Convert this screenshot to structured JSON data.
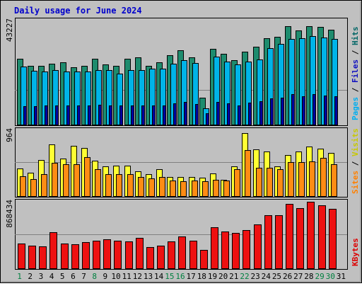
{
  "colors": {
    "background": "#C0C0C0",
    "title": "#0000CC",
    "hits": "#006666",
    "hits_bar": "#1E8C6E",
    "files": "#1010C0",
    "files_bar": "#00B4E8",
    "pages_bar": "#0000A0",
    "pages_label": "#00AEEF",
    "visits": "#C8C800",
    "visits_bar": "#FFFF33",
    "sites": "#FF8000",
    "sites_bar": "#FF8C14",
    "kbytes": "#DD0000",
    "kbytes_bar": "#EE1111",
    "day_green": "#008040",
    "day_black": "#000000"
  },
  "chart_data": {
    "type": "bar",
    "title": "Daily usage for June 2024",
    "categories": [
      "1",
      "2",
      "3",
      "4",
      "5",
      "6",
      "7",
      "8",
      "9",
      "10",
      "11",
      "12",
      "13",
      "14",
      "15",
      "16",
      "17",
      "18",
      "19",
      "20",
      "21",
      "22",
      "23",
      "24",
      "25",
      "26",
      "27",
      "28",
      "29",
      "30",
      "31"
    ],
    "weekend_days": [
      "1",
      "8",
      "15",
      "16",
      "22",
      "29",
      "30"
    ],
    "panels": [
      {
        "name": "hits-files-pages",
        "max_label": "43227",
        "ylim": [
          0,
          43227
        ],
        "legend": [
          {
            "key": "pages",
            "text": "Pages"
          },
          {
            "key": "sep1",
            "text": " / "
          },
          {
            "key": "files",
            "text": "Files"
          },
          {
            "key": "sep2",
            "text": " / "
          },
          {
            "key": "hits",
            "text": "Hits"
          }
        ],
        "series": [
          {
            "name": "Hits",
            "values": [
              27500,
              24500,
              24500,
              25500,
              26000,
              24000,
              24500,
              27500,
              25000,
              24500,
              27500,
              28000,
              24500,
              26000,
              29000,
              31000,
              28000,
              11500,
              31500,
              29500,
              27000,
              30500,
              32500,
              36000,
              36500,
              41000,
              39000,
              41000,
              40500,
              39500,
              null
            ]
          },
          {
            "name": "Files",
            "values": [
              24200,
              22600,
              22300,
              22900,
              22300,
              22300,
              22300,
              22900,
              22900,
              21300,
              22900,
              22900,
              23500,
              23500,
              25400,
              27000,
              25700,
              6900,
              28300,
              26400,
              25100,
              26400,
              27300,
              31700,
              33600,
              35500,
              35900,
              36800,
              36200,
              35500,
              null
            ]
          },
          {
            "name": "Pages",
            "values": [
              8000,
              8000,
              8300,
              8300,
              8300,
              8200,
              8300,
              8600,
              8300,
              8200,
              8300,
              8300,
              8300,
              8300,
              9000,
              9600,
              8900,
              5000,
              9600,
              9100,
              8300,
              9300,
              9900,
              11200,
              11500,
              12800,
              12000,
              12800,
              12400,
              12100,
              null
            ]
          }
        ]
      },
      {
        "name": "visits-sites",
        "max_label": "964",
        "ylim": [
          0,
          964
        ],
        "legend": [
          {
            "key": "sites",
            "text": "Sites"
          },
          {
            "key": "sep",
            "text": " / "
          },
          {
            "key": "visits",
            "text": "Visits"
          }
        ],
        "series": [
          {
            "name": "Visits",
            "values": [
              410,
              350,
              540,
              770,
              560,
              750,
              720,
              530,
              450,
              460,
              460,
              370,
              330,
              400,
              290,
              290,
              290,
              280,
              340,
              250,
              450,
              930,
              690,
              660,
              450,
              610,
              660,
              740,
              700,
              640,
              null
            ]
          },
          {
            "name": "Sites",
            "values": [
              300,
              260,
              330,
              500,
              480,
              480,
              580,
              400,
              330,
              330,
              330,
              290,
              270,
              290,
              240,
              230,
              240,
              230,
              250,
              240,
              400,
              680,
              420,
              420,
              400,
              510,
              510,
              520,
              570,
              480,
              null
            ]
          }
        ]
      },
      {
        "name": "kbytes",
        "max_label": "868434",
        "ylim": [
          0,
          868434
        ],
        "legend": [
          {
            "key": "kbytes",
            "text": "KBytes"
          }
        ],
        "series": [
          {
            "name": "KBytes",
            "values": [
              330000,
              300000,
              290000,
              470000,
              330000,
              320000,
              340000,
              360000,
              380000,
              360000,
              350000,
              400000,
              280000,
              300000,
              350000,
              420000,
              360000,
              240000,
              530000,
              480000,
              460000,
              500000,
              570000,
              690000,
              690000,
              830000,
              780000,
              860000,
              810000,
              770000,
              null
            ]
          }
        ]
      }
    ]
  }
}
